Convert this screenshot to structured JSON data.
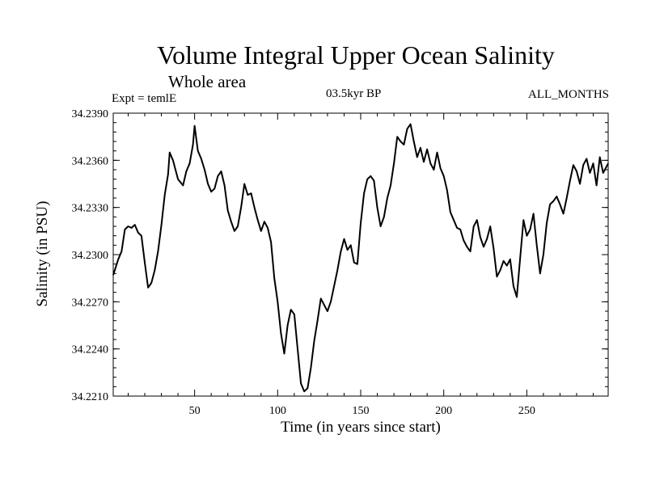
{
  "chart_data": {
    "type": "line",
    "title": "Volume Integral Upper Ocean Salinity",
    "subtitle": "Whole area",
    "left_note": "Expt = temlE",
    "center_note": "03.5kyr BP",
    "right_note": "ALL_MONTHS",
    "xlabel": "Time (in years since start)",
    "ylabel": "Salinity (in PSU)",
    "xlim": [
      1,
      299
    ],
    "ylim": [
      34.221,
      34.239
    ],
    "xticks": [
      50,
      100,
      150,
      200,
      250
    ],
    "xtick_labels": [
      "50",
      "100",
      "150",
      "200",
      "250"
    ],
    "yticks": [
      34.221,
      34.224,
      34.227,
      34.23,
      34.233,
      34.236,
      34.239
    ],
    "ytick_labels": [
      "34.2210",
      "34.2240",
      "34.2270",
      "34.2300",
      "34.2330",
      "34.2360",
      "34.2390"
    ],
    "series": [
      {
        "name": "salinity",
        "x": [
          1,
          4,
          6,
          8,
          10,
          12,
          14,
          16,
          18,
          20,
          22,
          24,
          26,
          28,
          30,
          32,
          34,
          35,
          37,
          40,
          43,
          45,
          47,
          49,
          50,
          52,
          54,
          56,
          58,
          60,
          62,
          64,
          66,
          68,
          70,
          72,
          74,
          76,
          78,
          80,
          82,
          84,
          86,
          88,
          90,
          92,
          94,
          96,
          98,
          100,
          102,
          104,
          106,
          108,
          110,
          112,
          114,
          116,
          118,
          120,
          122,
          124,
          126,
          128,
          130,
          132,
          134,
          136,
          138,
          140,
          142,
          144,
          146,
          148,
          150,
          152,
          154,
          156,
          158,
          160,
          162,
          164,
          166,
          168,
          170,
          172,
          174,
          176,
          178,
          180,
          182,
          184,
          186,
          188,
          190,
          192,
          194,
          196,
          198,
          200,
          202,
          204,
          206,
          208,
          210,
          212,
          214,
          216,
          218,
          220,
          222,
          224,
          226,
          228,
          230,
          232,
          234,
          236,
          238,
          240,
          242,
          244,
          246,
          248,
          250,
          252,
          254,
          256,
          258,
          260,
          262,
          264,
          266,
          268,
          270,
          272,
          274,
          276,
          278,
          280,
          282,
          284,
          286,
          288,
          290,
          292,
          294,
          296,
          299
        ],
        "values": [
          34.2287,
          34.2297,
          34.2302,
          34.2316,
          34.2318,
          34.2317,
          34.2319,
          34.2314,
          34.2312,
          34.2295,
          34.2279,
          34.2282,
          34.229,
          34.2302,
          34.2319,
          34.2338,
          34.2351,
          34.2365,
          34.236,
          34.2348,
          34.2344,
          34.2353,
          34.2358,
          34.237,
          34.2382,
          34.2366,
          34.2361,
          34.2354,
          34.2345,
          34.234,
          34.2342,
          34.235,
          34.2353,
          34.2344,
          34.2328,
          34.2321,
          34.2315,
          34.2318,
          34.233,
          34.2345,
          34.2338,
          34.2339,
          34.233,
          34.2322,
          34.2315,
          34.2321,
          34.2317,
          34.2308,
          34.2285,
          34.227,
          34.225,
          34.2237,
          34.2255,
          34.2265,
          34.2262,
          34.224,
          34.2218,
          34.2213,
          34.2215,
          34.2228,
          34.2245,
          34.2258,
          34.2272,
          34.2268,
          34.2264,
          34.227,
          34.228,
          34.229,
          34.2302,
          34.231,
          34.2303,
          34.2306,
          34.2295,
          34.2294,
          34.232,
          34.2339,
          34.2348,
          34.235,
          34.2347,
          34.233,
          34.2318,
          34.2324,
          34.2336,
          34.2344,
          34.2358,
          34.2375,
          34.2372,
          34.237,
          34.238,
          34.2383,
          34.2372,
          34.2362,
          34.2368,
          34.2359,
          34.2367,
          34.2358,
          34.2354,
          34.2365,
          34.2355,
          34.235,
          34.2341,
          34.2327,
          34.2322,
          34.2317,
          34.2316,
          34.2309,
          34.2305,
          34.2302,
          34.2318,
          34.2322,
          34.2311,
          34.2305,
          34.231,
          34.2318,
          34.2304,
          34.2286,
          34.229,
          34.2296,
          34.2293,
          34.2297,
          34.228,
          34.2273,
          34.2298,
          34.2322,
          34.2312,
          34.2316,
          34.2326,
          34.2306,
          34.2288,
          34.23,
          34.232,
          34.2332,
          34.2334,
          34.2337,
          34.2332,
          34.2326,
          34.2336,
          34.2347,
          34.2357,
          34.2353,
          34.2345,
          34.2357,
          34.2361,
          34.2352,
          34.2358,
          34.2344,
          34.2362,
          34.2352,
          34.2358
        ]
      }
    ]
  }
}
